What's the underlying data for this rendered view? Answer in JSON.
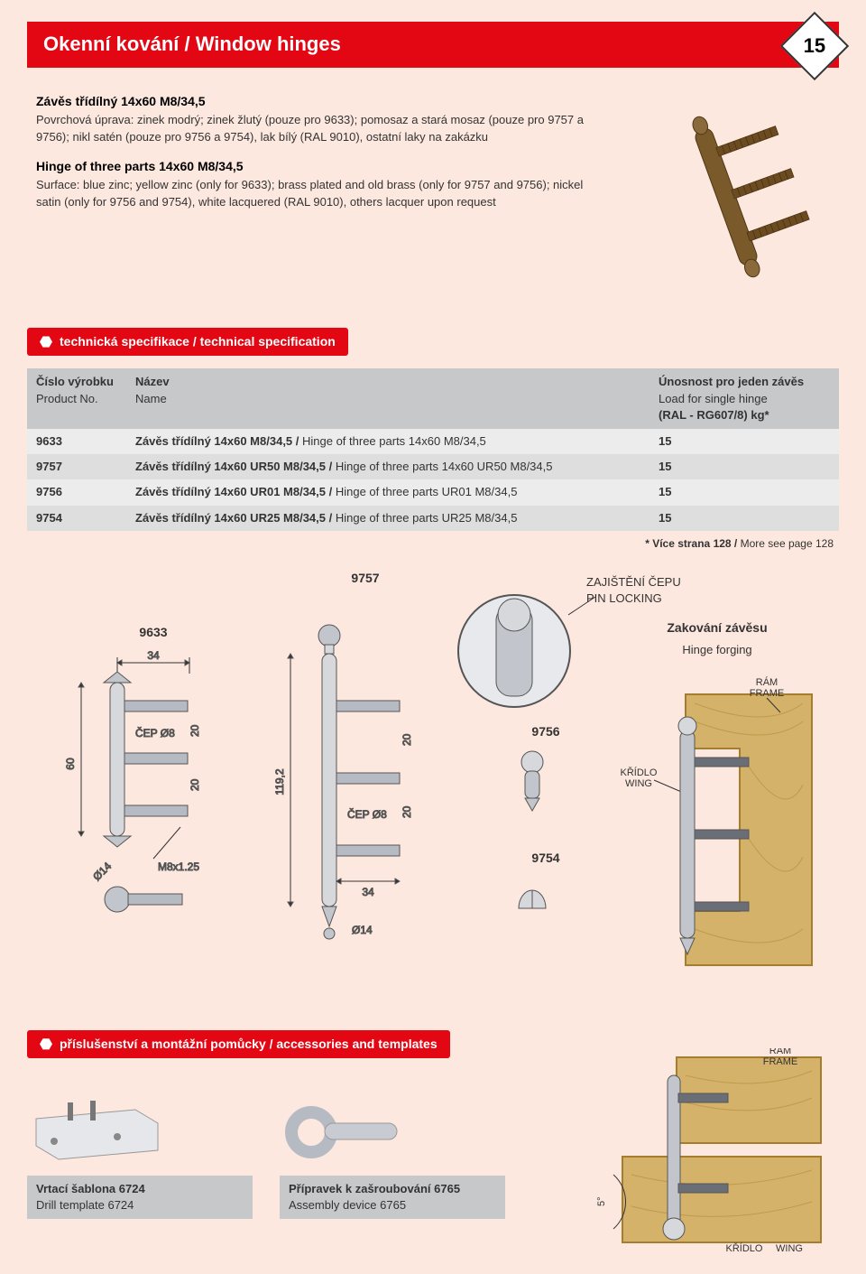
{
  "page_number": "15",
  "header_title": "Okenní kování / Window hinges",
  "colors": {
    "red": "#e30613",
    "page_bg": "#fde8df",
    "table_header": "#c7c8ca",
    "row_light": "#edecec",
    "row_dark": "#dedede",
    "hinge_brass": "#8a6a3a",
    "steel_light": "#d6d8dc",
    "steel_mid": "#b6bac2",
    "steel_dark": "#8a8f98",
    "wood": "#d4b26a",
    "wood_stroke": "#a67c2e"
  },
  "product_cz": {
    "title": "Závěs třídílný 14x60 M8/34,5",
    "body": "Povrchová úprava: zinek modrý; zinek žlutý (pouze pro 9633); pomosaz a stará mosaz (pouze pro 9757 a 9756); nikl satén (pouze pro 9756 a 9754), lak bílý (RAL 9010), ostatní laky na zakázku"
  },
  "product_en": {
    "title": "Hinge of three parts 14x60 M8/34,5",
    "body": "Surface: blue zinc; yellow zinc (only for 9633); brass plated and old brass (only for 9757 and 9756); nickel satin (only for 9756 and 9754), white lacquered (RAL 9010), others lacquer upon request"
  },
  "section_spec": "technická specifikace / technical specification",
  "section_acc": "příslušenství a montážní pomůcky / accessories and templates",
  "table": {
    "col1_cz": "Číslo výrobku",
    "col1_en": "Product No.",
    "col2_cz": "Název",
    "col2_en": "Name",
    "col3_cz": "Únosnost pro jeden závěs",
    "col3_en": "Load for single hinge",
    "col3_extra": "(RAL - RG607/8) kg*",
    "rows": [
      {
        "no": "9633",
        "name_b": "Závěs třídílný 14x60 M8/34,5 / ",
        "name_r": "Hinge of three parts 14x60 M8/34,5",
        "load": "15"
      },
      {
        "no": "9757",
        "name_b": "Závěs třídílný 14x60 UR50 M8/34,5 / ",
        "name_r": "Hinge of three parts 14x60 UR50 M8/34,5",
        "load": "15"
      },
      {
        "no": "9756",
        "name_b": "Závěs třídílný 14x60 UR01 M8/34,5 / ",
        "name_r": "Hinge of three parts UR01 M8/34,5",
        "load": "15"
      },
      {
        "no": "9754",
        "name_b": "Závěs třídílný 14x60 UR25 M8/34,5 / ",
        "name_r": "Hinge of three parts UR25 M8/34,5",
        "load": "15"
      }
    ]
  },
  "footnote_b": "* Více strana 128 / ",
  "footnote_r": "More see page 128",
  "diagrams": {
    "d9633": {
      "label": "9633",
      "dim_w": "34",
      "dim_h": "60",
      "dim_gap": "20",
      "pin": "ČEP Ø8",
      "thread": "M8x1.25",
      "diam": "Ø14"
    },
    "d9757": {
      "label": "9757",
      "dim_w": "34",
      "dim_h": "119,2",
      "dim_gap": "20",
      "pin": "ČEP Ø8",
      "diam": "Ø14"
    },
    "d9756": {
      "label": "9756"
    },
    "d9754": {
      "label": "9754"
    },
    "pin_lock_cz": "ZAJIŠTĚNÍ ČEPU",
    "pin_lock_en": "PIN LOCKING",
    "forging_cz": "Zakování závěsu",
    "forging_en": "Hinge forging",
    "frame_cz": "RÁM",
    "frame_en": "FRAME",
    "wing_cz": "KŘÍDLO",
    "wing_en": "WING",
    "angle": "5°"
  },
  "accessories": [
    {
      "title_b": "Vrtací šablona 6724",
      "title_r": "Drill template 6724"
    },
    {
      "title_b": "Přípravek k zašroubování 6765",
      "title_r": "Assembly device 6765"
    }
  ]
}
